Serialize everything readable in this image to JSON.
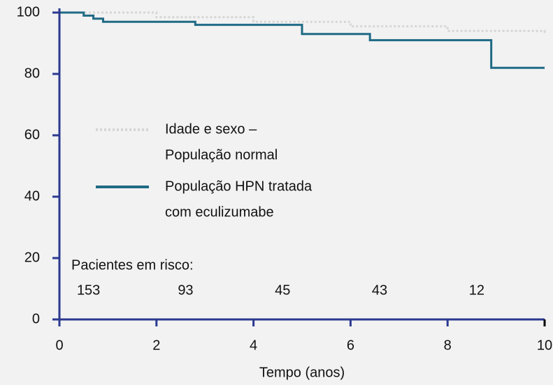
{
  "chart_data": {
    "type": "step",
    "xlabel": "Tempo (anos)",
    "xlim": [
      0,
      10
    ],
    "xticks": [
      0,
      2,
      4,
      6,
      8,
      10
    ],
    "ylim": [
      0,
      100
    ],
    "yticks": [
      0,
      20,
      40,
      60,
      80,
      100
    ],
    "axis_color": "#2b3990",
    "series": [
      {
        "name": [
          "Idade e sexo –",
          "População normal"
        ],
        "color": "#d6d6d6",
        "style": "dotted",
        "x": [
          0,
          2,
          4,
          6,
          8,
          10
        ],
        "values": [
          100,
          98.5,
          97,
          95.5,
          94,
          93
        ]
      },
      {
        "name": [
          "População HPN tratada",
          "com eculizumabe"
        ],
        "color": "#1f6a85",
        "style": "solid",
        "x": [
          0,
          0.5,
          0.7,
          0.9,
          2.8,
          5,
          6.4,
          8.9,
          10
        ],
        "values": [
          100,
          99,
          98,
          97,
          96,
          93,
          91,
          82,
          82
        ]
      }
    ],
    "at_risk": {
      "label": "Pacientes em risco:",
      "times": [
        0,
        2,
        4,
        6,
        8
      ],
      "counts": [
        153,
        93,
        45,
        43,
        12
      ]
    }
  }
}
